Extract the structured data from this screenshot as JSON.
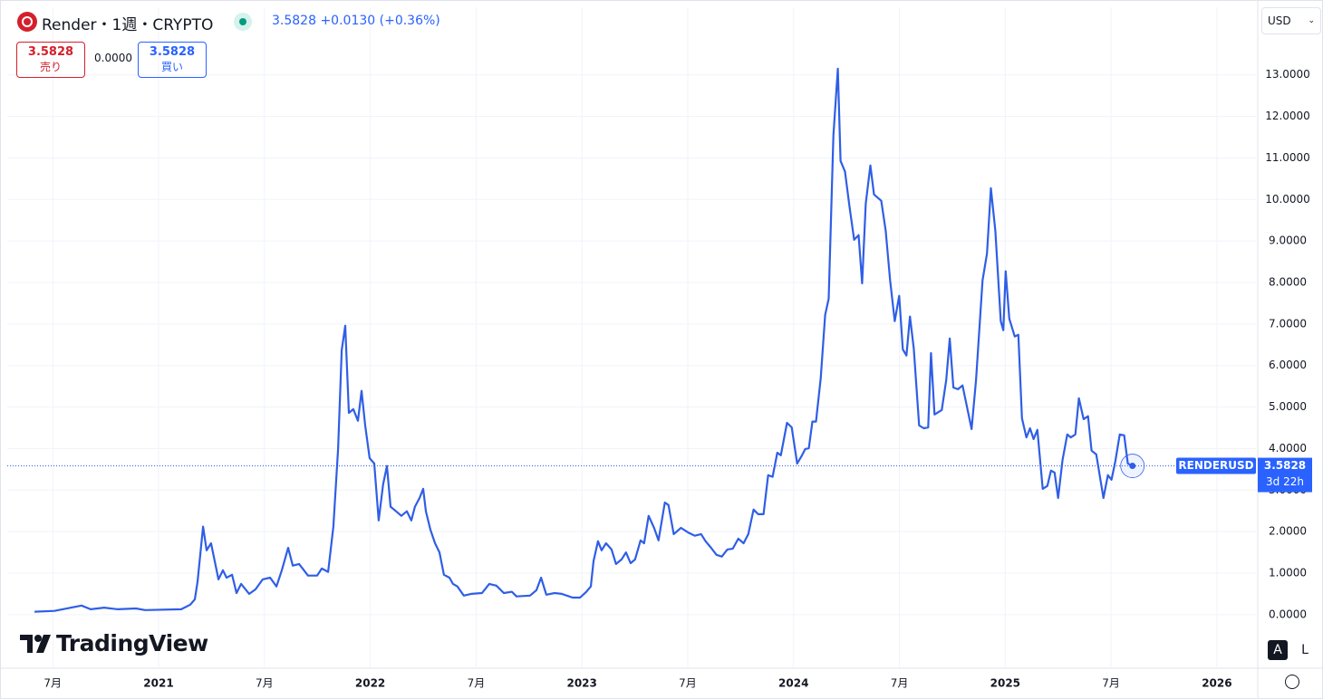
{
  "header": {
    "symbol": "Render・1週・CRYPTO",
    "price": "3.5828",
    "change": "+0.0130",
    "change_pct": "(+0.36%)",
    "sell_price": "3.5828",
    "sell_label": "売り",
    "spread": "0.0000",
    "buy_price": "3.5828",
    "buy_label": "買い",
    "currency": "USD",
    "brand": "TradingView",
    "scale_buttons": [
      "A",
      "L"
    ]
  },
  "chart_data": {
    "type": "line",
    "color": "#2f5ee6",
    "grid": true,
    "price_label": {
      "symbol": "RENDERUSD",
      "price": "3.5828",
      "countdown": "3d 22h"
    },
    "xlim": [
      2020.285,
      2026.193
    ],
    "ylim": [
      -1.29,
      14.63
    ],
    "xticks": [
      {
        "value": 2020.5,
        "label": "7月"
      },
      2021,
      {
        "value": 2021.5,
        "label": "7月"
      },
      2022,
      {
        "value": 2022.5,
        "label": "7月"
      },
      2023,
      {
        "value": 2023.5,
        "label": "7月"
      },
      2024,
      {
        "value": 2024.5,
        "label": "7月"
      },
      2025,
      {
        "value": 2025.5,
        "label": "7月"
      },
      2026
    ],
    "yticks": [
      {
        "value": 0,
        "label": "0.0000"
      },
      {
        "value": 1,
        "label": "1.0000"
      },
      {
        "value": 2,
        "label": "2.0000"
      },
      {
        "value": 3,
        "label": "3.0000"
      },
      {
        "value": 4,
        "label": "4.0000"
      },
      {
        "value": 5,
        "label": "5.0000"
      },
      {
        "value": 6,
        "label": "6.0000"
      },
      {
        "value": 7,
        "label": "7.0000"
      },
      {
        "value": 8,
        "label": "8.0000"
      },
      {
        "value": 9,
        "label": "9.0000"
      },
      {
        "value": 10,
        "label": "10.0000"
      },
      {
        "value": 11,
        "label": "11.0000"
      },
      {
        "value": 12,
        "label": "12.0000"
      },
      {
        "value": 13,
        "label": "13.0000"
      }
    ],
    "x": [
      2020.414,
      2020.508,
      2020.636,
      2020.679,
      2020.743,
      2020.807,
      2020.893,
      2020.936,
      2021.107,
      2021.15,
      2021.171,
      2021.184,
      2021.21,
      2021.227,
      2021.248,
      2021.283,
      2021.304,
      2021.321,
      2021.347,
      2021.368,
      2021.39,
      2021.428,
      2021.458,
      2021.492,
      2021.527,
      2021.557,
      2021.582,
      2021.612,
      2021.634,
      2021.664,
      2021.706,
      2021.749,
      2021.771,
      2021.801,
      2021.826,
      2021.848,
      2021.865,
      2021.882,
      2021.899,
      2021.92,
      2021.942,
      2021.959,
      2021.976,
      2021.997,
      2022.019,
      2022.04,
      2022.061,
      2022.079,
      2022.096,
      2022.122,
      2022.147,
      2022.173,
      2022.194,
      2022.211,
      2022.233,
      2022.25,
      2022.263,
      2022.284,
      2022.306,
      2022.327,
      2022.348,
      2022.374,
      2022.391,
      2022.412,
      2022.442,
      2022.477,
      2022.528,
      2022.562,
      2022.596,
      2022.631,
      2022.669,
      2022.691,
      2022.755,
      2022.785,
      2022.807,
      2022.832,
      2022.871,
      2022.905,
      2022.956,
      2022.991,
      2023.021,
      2023.042,
      2023.055,
      2023.076,
      2023.093,
      2023.114,
      2023.14,
      2023.161,
      2023.187,
      2023.208,
      2023.23,
      2023.251,
      2023.277,
      2023.294,
      2023.315,
      2023.341,
      2023.362,
      2023.392,
      2023.409,
      2023.434,
      2023.468,
      2023.502,
      2023.533,
      2023.563,
      2023.584,
      2023.61,
      2023.636,
      2023.661,
      2023.687,
      2023.713,
      2023.739,
      2023.764,
      2023.786,
      2023.811,
      2023.833,
      2023.858,
      2023.88,
      2023.901,
      2023.923,
      2023.94,
      2023.969,
      2023.991,
      2024.017,
      2024.038,
      2024.055,
      2024.072,
      2024.089,
      2024.106,
      2024.128,
      2024.149,
      2024.166,
      2024.188,
      2024.209,
      2024.222,
      2024.243,
      2024.265,
      2024.286,
      2024.307,
      2024.324,
      2024.341,
      2024.363,
      2024.38,
      2024.414,
      2024.435,
      2024.456,
      2024.478,
      2024.499,
      2024.516,
      2024.533,
      2024.55,
      2024.568,
      2024.593,
      2024.615,
      2024.636,
      2024.649,
      2024.666,
      2024.7,
      2024.721,
      2024.738,
      2024.755,
      2024.777,
      2024.798,
      2024.841,
      2024.862,
      2024.893,
      2024.914,
      2024.932,
      2024.953,
      2024.979,
      2024.991,
      2025.002,
      2025.019,
      2025.045,
      2025.062,
      2025.079,
      2025.1,
      2025.117,
      2025.134,
      2025.152,
      2025.177,
      2025.199,
      2025.216,
      2025.233,
      2025.25,
      2025.271,
      2025.293,
      2025.31,
      2025.331,
      2025.348,
      2025.37,
      2025.391,
      2025.408,
      2025.43,
      2025.464,
      2025.485,
      2025.502,
      2025.52,
      2025.541,
      2025.562,
      2025.579,
      2025.601
    ],
    "values": [
      0.07,
      0.09,
      0.22,
      0.13,
      0.17,
      0.13,
      0.15,
      0.11,
      0.13,
      0.24,
      0.37,
      0.79,
      2.12,
      1.55,
      1.72,
      0.85,
      1.07,
      0.89,
      0.96,
      0.52,
      0.74,
      0.5,
      0.61,
      0.85,
      0.89,
      0.68,
      1.07,
      1.61,
      1.18,
      1.22,
      0.94,
      0.94,
      1.11,
      1.03,
      2.12,
      3.99,
      6.37,
      6.96,
      4.86,
      4.95,
      4.67,
      5.39,
      4.56,
      3.77,
      3.64,
      2.27,
      3.14,
      3.58,
      2.6,
      2.49,
      2.38,
      2.49,
      2.27,
      2.6,
      2.81,
      3.03,
      2.49,
      2.05,
      1.72,
      1.5,
      0.96,
      0.89,
      0.74,
      0.68,
      0.46,
      0.5,
      0.52,
      0.74,
      0.7,
      0.52,
      0.55,
      0.44,
      0.46,
      0.59,
      0.89,
      0.48,
      0.52,
      0.5,
      0.41,
      0.41,
      0.55,
      0.68,
      1.29,
      1.77,
      1.55,
      1.72,
      1.57,
      1.22,
      1.33,
      1.5,
      1.24,
      1.33,
      1.79,
      1.72,
      2.38,
      2.09,
      1.79,
      2.7,
      2.64,
      1.94,
      2.09,
      1.98,
      1.9,
      1.94,
      1.77,
      1.61,
      1.44,
      1.4,
      1.57,
      1.59,
      1.83,
      1.72,
      1.94,
      2.53,
      2.42,
      2.42,
      3.36,
      3.32,
      3.9,
      3.84,
      4.62,
      4.51,
      3.64,
      3.82,
      3.99,
      4.01,
      4.65,
      4.65,
      5.69,
      7.22,
      7.61,
      11.54,
      13.15,
      10.93,
      10.67,
      9.79,
      9.03,
      9.14,
      7.98,
      9.9,
      10.82,
      10.12,
      9.97,
      9.25,
      8.05,
      7.07,
      7.68,
      6.39,
      6.24,
      7.18,
      6.41,
      4.56,
      4.49,
      4.51,
      6.3,
      4.82,
      4.93,
      5.65,
      6.65,
      5.47,
      5.43,
      5.52,
      4.47,
      5.65,
      8.05,
      8.7,
      10.27,
      9.25,
      7.07,
      6.85,
      8.27,
      7.13,
      6.7,
      6.74,
      4.73,
      4.27,
      4.49,
      4.23,
      4.45,
      3.03,
      3.1,
      3.47,
      3.42,
      2.81,
      3.73,
      4.34,
      4.27,
      4.34,
      5.21,
      4.71,
      4.78,
      3.95,
      3.86,
      2.81,
      3.36,
      3.25,
      3.69,
      4.34,
      4.32,
      3.64,
      3.5828
    ]
  }
}
